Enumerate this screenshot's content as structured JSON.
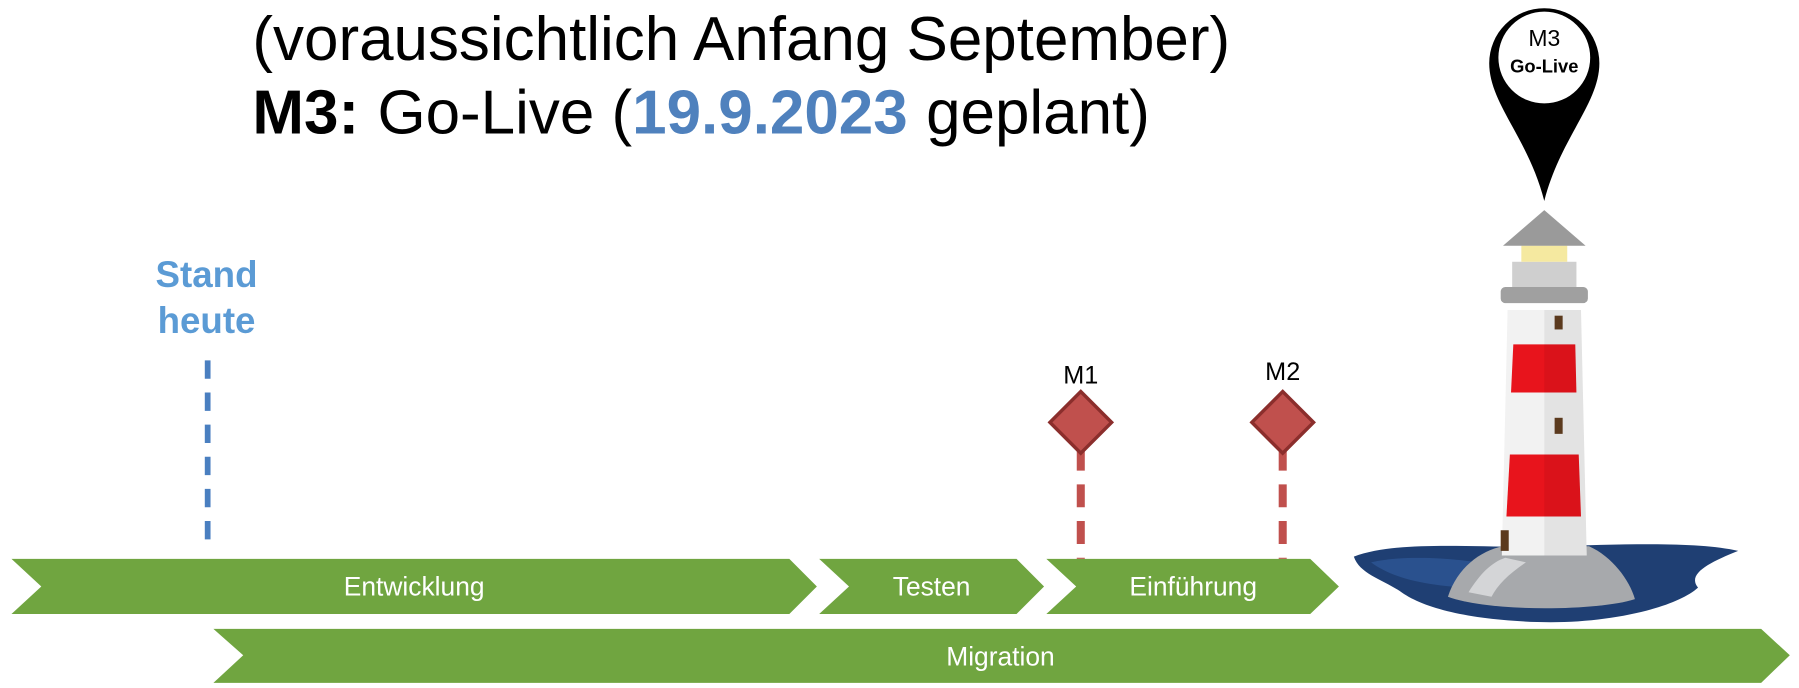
{
  "header": {
    "line1": "(voraussichtlich Anfang September)",
    "milestone": "M3:",
    "event": "Go-Live (",
    "date": "19.9.2023",
    "suffix": "geplant)"
  },
  "today": {
    "line1": "Stand",
    "line2": "heute"
  },
  "milestones": [
    {
      "label": "M1"
    },
    {
      "label": "M2"
    }
  ],
  "pin": {
    "label": "M3",
    "sublabel": "Go-Live"
  },
  "phases": [
    {
      "label": "Entwicklung"
    },
    {
      "label": "Testen"
    },
    {
      "label": "Einführung"
    },
    {
      "label": "Migration"
    }
  ]
}
